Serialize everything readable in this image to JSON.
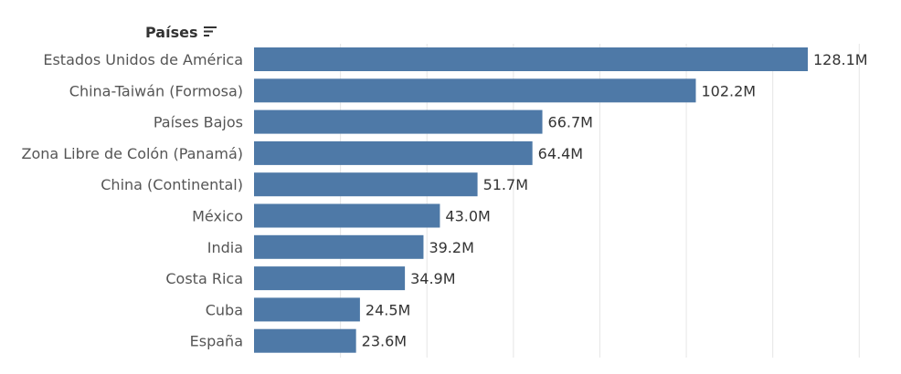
{
  "header": {
    "label": "Países",
    "sort_icon": "sort-descending-icon"
  },
  "colors": {
    "bar": "#4e79a7",
    "label_text": "#555555",
    "value_text": "#333333",
    "gridline": "#e6e6e6"
  },
  "chart_data": {
    "type": "bar",
    "orientation": "horizontal",
    "categories": [
      "Estados Unidos de América",
      "China-Taiwán (Formosa)",
      "Países Bajos",
      "Zona Libre de Colón (Panamá)",
      "China (Continental)",
      "México",
      "India",
      "Costa Rica",
      "Cuba",
      "España"
    ],
    "values": [
      128.1,
      102.2,
      66.7,
      64.4,
      51.7,
      43.0,
      39.2,
      34.9,
      24.5,
      23.6
    ],
    "value_labels": [
      "128.1M",
      "102.2M",
      "66.7M",
      "64.4M",
      "51.7M",
      "43.0M",
      "39.2M",
      "34.9M",
      "24.5M",
      "23.6M"
    ],
    "unit": "M",
    "xlim": [
      0,
      140
    ],
    "grid": true
  }
}
